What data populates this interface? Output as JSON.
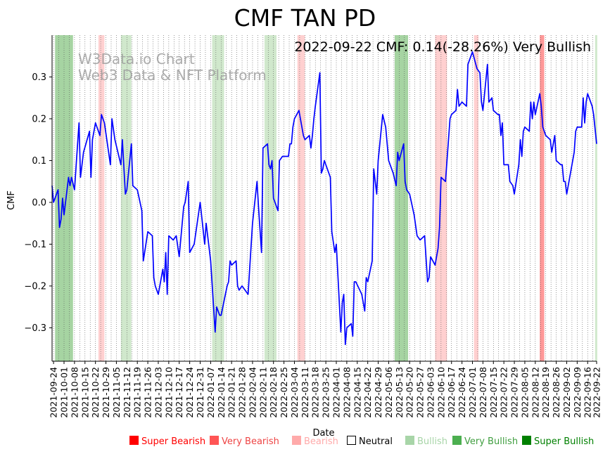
{
  "chart_data": {
    "type": "line",
    "title": "CMF TAN PD",
    "annotation": "2022-09-22 CMF: 0.14(-28.26%) Very Bullish",
    "watermark": [
      "W3Data.io Chart",
      "Web3 Data & NFT Platform"
    ],
    "xlabel": "Date",
    "ylabel": "CMF",
    "ylim": [
      -0.38,
      0.4
    ],
    "xrange": [
      "2021-09-23",
      "2022-09-22"
    ],
    "grid": "vertical dotted",
    "yticks": [
      "−0.3",
      "−0.2",
      "−0.1",
      "0.0",
      "0.1",
      "0.2",
      "0.3"
    ],
    "ytick_values": [
      -0.3,
      -0.2,
      -0.1,
      0.0,
      0.1,
      0.2,
      0.3
    ],
    "xticks": [
      "2021-09-24",
      "2021-10-01",
      "2021-10-08",
      "2021-10-15",
      "2021-10-22",
      "2021-10-29",
      "2021-11-05",
      "2021-11-12",
      "2021-11-19",
      "2021-11-26",
      "2021-12-03",
      "2021-12-10",
      "2021-12-17",
      "2021-12-24",
      "2021-12-31",
      "2022-01-07",
      "2022-01-14",
      "2022-01-21",
      "2022-01-28",
      "2022-02-04",
      "2022-02-11",
      "2022-02-18",
      "2022-02-25",
      "2022-03-04",
      "2022-03-11",
      "2022-03-18",
      "2022-03-25",
      "2022-04-01",
      "2022-04-08",
      "2022-04-15",
      "2022-04-22",
      "2022-04-29",
      "2022-05-06",
      "2022-05-13",
      "2022-05-20",
      "2022-05-27",
      "2022-06-03",
      "2022-06-10",
      "2022-06-17",
      "2022-06-24",
      "2022-07-01",
      "2022-07-08",
      "2022-07-15",
      "2022-07-22",
      "2022-07-29",
      "2022-08-05",
      "2022-08-12",
      "2022-08-19",
      "2022-08-26",
      "2022-09-02",
      "2022-09-09",
      "2022-09-16",
      "2022-09-22"
    ],
    "series": [
      {
        "color": "#0000ff",
        "points": [
          [
            "2021-09-23",
            0.04
          ],
          [
            "2021-09-24",
            0.0
          ],
          [
            "2021-09-27",
            0.03
          ],
          [
            "2021-09-28",
            -0.06
          ],
          [
            "2021-09-29",
            -0.04
          ],
          [
            "2021-09-30",
            0.01
          ],
          [
            "2021-10-01",
            -0.03
          ],
          [
            "2021-10-04",
            0.06
          ],
          [
            "2021-10-05",
            0.04
          ],
          [
            "2021-10-06",
            0.06
          ],
          [
            "2021-10-08",
            0.03
          ],
          [
            "2021-10-11",
            0.19
          ],
          [
            "2021-10-12",
            0.06
          ],
          [
            "2021-10-14",
            0.12
          ],
          [
            "2021-10-18",
            0.17
          ],
          [
            "2021-10-19",
            0.06
          ],
          [
            "2021-10-20",
            0.15
          ],
          [
            "2021-10-22",
            0.19
          ],
          [
            "2021-10-25",
            0.16
          ],
          [
            "2021-10-26",
            0.21
          ],
          [
            "2021-10-28",
            0.19
          ],
          [
            "2021-11-01",
            0.09
          ],
          [
            "2021-11-02",
            0.2
          ],
          [
            "2021-11-04",
            0.15
          ],
          [
            "2021-11-08",
            0.09
          ],
          [
            "2021-11-09",
            0.15
          ],
          [
            "2021-11-11",
            0.02
          ],
          [
            "2021-11-12",
            0.03
          ],
          [
            "2021-11-15",
            0.14
          ],
          [
            "2021-11-16",
            0.04
          ],
          [
            "2021-11-19",
            0.03
          ],
          [
            "2021-11-22",
            -0.02
          ],
          [
            "2021-11-23",
            -0.14
          ],
          [
            "2021-11-26",
            -0.07
          ],
          [
            "2021-11-29",
            -0.08
          ],
          [
            "2021-11-30",
            -0.18
          ],
          [
            "2021-12-01",
            -0.2
          ],
          [
            "2021-12-03",
            -0.22
          ],
          [
            "2021-12-06",
            -0.16
          ],
          [
            "2021-12-07",
            -0.19
          ],
          [
            "2021-12-08",
            -0.12
          ],
          [
            "2021-12-09",
            -0.22
          ],
          [
            "2021-12-10",
            -0.08
          ],
          [
            "2021-12-13",
            -0.09
          ],
          [
            "2021-12-15",
            -0.08
          ],
          [
            "2021-12-17",
            -0.13
          ],
          [
            "2021-12-20",
            -0.01
          ],
          [
            "2021-12-21",
            0.0
          ],
          [
            "2021-12-23",
            0.05
          ],
          [
            "2021-12-24",
            -0.12
          ],
          [
            "2021-12-27",
            -0.1
          ],
          [
            "2021-12-31",
            0.0
          ],
          [
            "2022-01-03",
            -0.1
          ],
          [
            "2022-01-04",
            -0.05
          ],
          [
            "2022-01-06",
            -0.11
          ],
          [
            "2022-01-07",
            -0.14
          ],
          [
            "2022-01-10",
            -0.31
          ],
          [
            "2022-01-11",
            -0.25
          ],
          [
            "2022-01-13",
            -0.27
          ],
          [
            "2022-01-14",
            -0.27
          ],
          [
            "2022-01-18",
            -0.2
          ],
          [
            "2022-01-19",
            -0.19
          ],
          [
            "2022-01-20",
            -0.14
          ],
          [
            "2022-01-21",
            -0.15
          ],
          [
            "2022-01-24",
            -0.14
          ],
          [
            "2022-01-25",
            -0.2
          ],
          [
            "2022-01-26",
            -0.21
          ],
          [
            "2022-01-28",
            -0.2
          ],
          [
            "2022-02-01",
            -0.22
          ],
          [
            "2022-02-04",
            -0.05
          ],
          [
            "2022-02-07",
            0.05
          ],
          [
            "2022-02-08",
            -0.01
          ],
          [
            "2022-02-10",
            -0.12
          ],
          [
            "2022-02-11",
            0.13
          ],
          [
            "2022-02-14",
            0.14
          ],
          [
            "2022-02-15",
            0.09
          ],
          [
            "2022-02-16",
            0.08
          ],
          [
            "2022-02-17",
            0.1
          ],
          [
            "2022-02-18",
            0.01
          ],
          [
            "2022-02-21",
            -0.02
          ],
          [
            "2022-02-22",
            0.1
          ],
          [
            "2022-02-24",
            0.11
          ],
          [
            "2022-02-25",
            0.11
          ],
          [
            "2022-02-28",
            0.11
          ],
          [
            "2022-03-01",
            0.14
          ],
          [
            "2022-03-02",
            0.14
          ],
          [
            "2022-03-03",
            0.18
          ],
          [
            "2022-03-04",
            0.2
          ],
          [
            "2022-03-07",
            0.22
          ],
          [
            "2022-03-08",
            0.2
          ],
          [
            "2022-03-10",
            0.16
          ],
          [
            "2022-03-11",
            0.15
          ],
          [
            "2022-03-14",
            0.16
          ],
          [
            "2022-03-15",
            0.13
          ],
          [
            "2022-03-16",
            0.16
          ],
          [
            "2022-03-17",
            0.2
          ],
          [
            "2022-03-18",
            0.23
          ],
          [
            "2022-03-21",
            0.31
          ],
          [
            "2022-03-22",
            0.07
          ],
          [
            "2022-03-23",
            0.08
          ],
          [
            "2022-03-24",
            0.1
          ],
          [
            "2022-03-25",
            0.09
          ],
          [
            "2022-03-28",
            0.06
          ],
          [
            "2022-03-29",
            -0.07
          ],
          [
            "2022-03-31",
            -0.12
          ],
          [
            "2022-04-01",
            -0.1
          ],
          [
            "2022-04-04",
            -0.31
          ],
          [
            "2022-04-05",
            -0.24
          ],
          [
            "2022-04-06",
            -0.22
          ],
          [
            "2022-04-07",
            -0.34
          ],
          [
            "2022-04-08",
            -0.3
          ],
          [
            "2022-04-11",
            -0.29
          ],
          [
            "2022-04-12",
            -0.32
          ],
          [
            "2022-04-13",
            -0.19
          ],
          [
            "2022-04-14",
            -0.19
          ],
          [
            "2022-04-18",
            -0.22
          ],
          [
            "2022-04-19",
            -0.24
          ],
          [
            "2022-04-20",
            -0.26
          ],
          [
            "2022-04-21",
            -0.18
          ],
          [
            "2022-04-22",
            -0.19
          ],
          [
            "2022-04-25",
            -0.14
          ],
          [
            "2022-04-26",
            0.08
          ],
          [
            "2022-04-28",
            0.02
          ],
          [
            "2022-04-29",
            0.1
          ],
          [
            "2022-05-02",
            0.21
          ],
          [
            "2022-05-04",
            0.18
          ],
          [
            "2022-05-06",
            0.1
          ],
          [
            "2022-05-09",
            0.07
          ],
          [
            "2022-05-11",
            0.04
          ],
          [
            "2022-05-12",
            0.12
          ],
          [
            "2022-05-13",
            0.1
          ],
          [
            "2022-05-16",
            0.14
          ],
          [
            "2022-05-17",
            0.05
          ],
          [
            "2022-05-18",
            0.03
          ],
          [
            "2022-05-20",
            0.02
          ],
          [
            "2022-05-23",
            -0.03
          ],
          [
            "2022-05-25",
            -0.08
          ],
          [
            "2022-05-27",
            -0.09
          ],
          [
            "2022-05-30",
            -0.08
          ],
          [
            "2022-06-01",
            -0.19
          ],
          [
            "2022-06-02",
            -0.18
          ],
          [
            "2022-06-03",
            -0.13
          ],
          [
            "2022-06-06",
            -0.15
          ],
          [
            "2022-06-08",
            -0.11
          ],
          [
            "2022-06-09",
            -0.06
          ],
          [
            "2022-06-10",
            0.06
          ],
          [
            "2022-06-13",
            0.05
          ],
          [
            "2022-06-16",
            0.2
          ],
          [
            "2022-06-17",
            0.21
          ],
          [
            "2022-06-20",
            0.22
          ],
          [
            "2022-06-21",
            0.27
          ],
          [
            "2022-06-22",
            0.23
          ],
          [
            "2022-06-24",
            0.24
          ],
          [
            "2022-06-27",
            0.23
          ],
          [
            "2022-06-28",
            0.33
          ],
          [
            "2022-07-01",
            0.36
          ],
          [
            "2022-07-04",
            0.32
          ],
          [
            "2022-07-06",
            0.31
          ],
          [
            "2022-07-07",
            0.24
          ],
          [
            "2022-07-08",
            0.22
          ],
          [
            "2022-07-11",
            0.33
          ],
          [
            "2022-07-12",
            0.24
          ],
          [
            "2022-07-14",
            0.25
          ],
          [
            "2022-07-15",
            0.22
          ],
          [
            "2022-07-18",
            0.21
          ],
          [
            "2022-07-19",
            0.21
          ],
          [
            "2022-07-20",
            0.16
          ],
          [
            "2022-07-21",
            0.19
          ],
          [
            "2022-07-22",
            0.09
          ],
          [
            "2022-07-25",
            0.09
          ],
          [
            "2022-07-26",
            0.05
          ],
          [
            "2022-07-28",
            0.04
          ],
          [
            "2022-07-29",
            0.02
          ],
          [
            "2022-08-01",
            0.09
          ],
          [
            "2022-08-02",
            0.15
          ],
          [
            "2022-08-03",
            0.11
          ],
          [
            "2022-08-04",
            0.17
          ],
          [
            "2022-08-05",
            0.18
          ],
          [
            "2022-08-08",
            0.17
          ],
          [
            "2022-08-09",
            0.24
          ],
          [
            "2022-08-10",
            0.2
          ],
          [
            "2022-08-11",
            0.24
          ],
          [
            "2022-08-12",
            0.21
          ],
          [
            "2022-08-15",
            0.26
          ],
          [
            "2022-08-16",
            0.23
          ],
          [
            "2022-08-17",
            0.18
          ],
          [
            "2022-08-19",
            0.16
          ],
          [
            "2022-08-22",
            0.15
          ],
          [
            "2022-08-23",
            0.12
          ],
          [
            "2022-08-25",
            0.16
          ],
          [
            "2022-08-26",
            0.1
          ],
          [
            "2022-08-29",
            0.09
          ],
          [
            "2022-08-30",
            0.09
          ],
          [
            "2022-08-31",
            0.05
          ],
          [
            "2022-09-01",
            0.05
          ],
          [
            "2022-09-02",
            0.02
          ],
          [
            "2022-09-06",
            0.1
          ],
          [
            "2022-09-07",
            0.12
          ],
          [
            "2022-09-08",
            0.17
          ],
          [
            "2022-09-09",
            0.18
          ],
          [
            "2022-09-12",
            0.18
          ],
          [
            "2022-09-13",
            0.25
          ],
          [
            "2022-09-14",
            0.19
          ],
          [
            "2022-09-15",
            0.24
          ],
          [
            "2022-09-16",
            0.26
          ],
          [
            "2022-09-19",
            0.23
          ],
          [
            "2022-09-20",
            0.21
          ],
          [
            "2022-09-22",
            0.14
          ]
        ]
      }
    ],
    "bands": [
      {
        "start": "2021-09-25",
        "end": "2021-10-07",
        "class": "Very Bullish"
      },
      {
        "start": "2021-10-24",
        "end": "2021-10-28",
        "class": "Bearish"
      },
      {
        "start": "2021-11-08",
        "end": "2021-11-15",
        "class": "Bullish"
      },
      {
        "start": "2022-01-08",
        "end": "2022-01-16",
        "class": "Bullish"
      },
      {
        "start": "2022-02-12",
        "end": "2022-02-20",
        "class": "Bullish"
      },
      {
        "start": "2022-03-06",
        "end": "2022-03-11",
        "class": "Bearish"
      },
      {
        "start": "2022-05-10",
        "end": "2022-05-19",
        "class": "Very Bullish"
      },
      {
        "start": "2022-06-06",
        "end": "2022-06-14",
        "class": "Bearish"
      },
      {
        "start": "2022-07-02",
        "end": "2022-07-05",
        "class": "Bearish"
      },
      {
        "start": "2022-08-15",
        "end": "2022-08-18",
        "class": "Very Bearish"
      },
      {
        "start": "2022-09-21",
        "end": "2022-09-22",
        "class": "Bullish"
      }
    ],
    "legend": [
      {
        "label": "Super Bearish",
        "color": "#ff0000",
        "text_color": "#ff0000"
      },
      {
        "label": "Very Bearish",
        "color": "#ff5555",
        "text_color": "#ee4444"
      },
      {
        "label": "Bearish",
        "color": "#ffaaaa",
        "text_color": "#ffaaaa"
      },
      {
        "label": "Neutral",
        "color": "#ffffff",
        "text_color": "#000000"
      },
      {
        "label": "Bullish",
        "color": "#a8d5a8",
        "text_color": "#a8d5a8"
      },
      {
        "label": "Very Bullish",
        "color": "#4caf50",
        "text_color": "#3f9e3f"
      },
      {
        "label": "Super Bullish",
        "color": "#008000",
        "text_color": "#008000"
      }
    ],
    "band_colors": {
      "Super Bearish": "#ff9999",
      "Very Bearish": "#ff9999",
      "Bearish": "#ffd0d0",
      "Bullish": "#d0e8cc",
      "Very Bullish": "#a6d4a2",
      "Super Bullish": "#6cbf6c"
    },
    "line_color": "#0000ff"
  }
}
